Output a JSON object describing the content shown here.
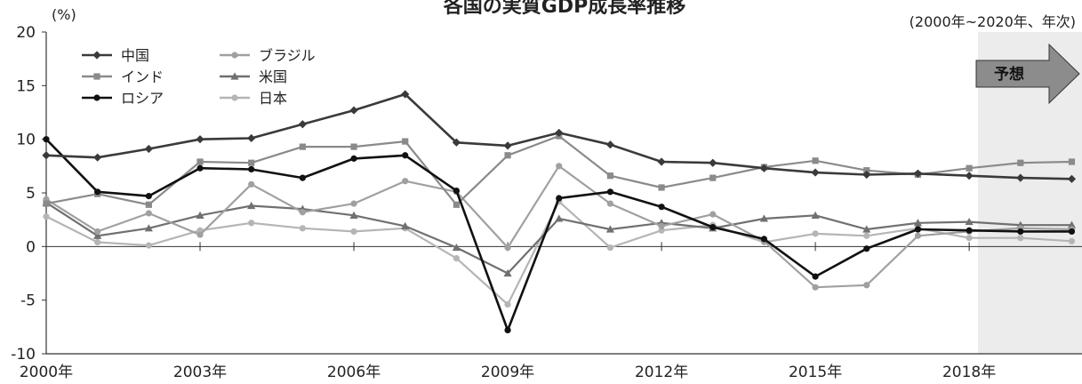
{
  "chart_data": {
    "type": "line",
    "title": "各国の実質GDP成長率推移",
    "subtitle": "(2000年~2020年、年次)",
    "ylabel": "(%)",
    "xlabel": "",
    "ylim": [
      -10,
      20
    ],
    "yticks": [
      20,
      15,
      10,
      5,
      0,
      -5,
      -10
    ],
    "x": [
      2000,
      2001,
      2002,
      2003,
      2004,
      2005,
      2006,
      2007,
      2008,
      2009,
      2010,
      2011,
      2012,
      2013,
      2014,
      2015,
      2016,
      2017,
      2018,
      2019,
      2020
    ],
    "xtick_labels": [
      "2000年",
      "2003年",
      "2006年",
      "2009年",
      "2012年",
      "2015年",
      "2018年"
    ],
    "forecast_label": "予想",
    "forecast_from": 2018,
    "legend_position": "top-left",
    "grid": false,
    "series": [
      {
        "name": "中国",
        "color": "#3a3a3a",
        "marker": "diamond",
        "values": [
          8.5,
          8.3,
          9.1,
          10.0,
          10.1,
          11.4,
          12.7,
          14.2,
          9.7,
          9.4,
          10.6,
          9.5,
          7.9,
          7.8,
          7.3,
          6.9,
          6.7,
          6.8,
          6.6,
          6.4,
          6.3
        ]
      },
      {
        "name": "インド",
        "color": "#8a8a8a",
        "marker": "square",
        "values": [
          4.0,
          4.9,
          3.9,
          7.9,
          7.8,
          9.3,
          9.3,
          9.8,
          3.9,
          8.5,
          10.3,
          6.6,
          5.5,
          6.4,
          7.4,
          8.0,
          7.1,
          6.7,
          7.3,
          7.8,
          7.9
        ]
      },
      {
        "name": "ロシア",
        "color": "#111111",
        "marker": "circle",
        "values": [
          10.0,
          5.1,
          4.7,
          7.3,
          7.2,
          6.4,
          8.2,
          8.5,
          5.2,
          -7.8,
          4.5,
          5.1,
          3.7,
          1.8,
          0.7,
          -2.8,
          -0.2,
          1.6,
          1.5,
          1.4,
          1.4
        ]
      },
      {
        "name": "ブラジル",
        "color": "#a0a0a0",
        "marker": "circle",
        "values": [
          4.4,
          1.4,
          3.1,
          1.1,
          5.8,
          3.2,
          4.0,
          6.1,
          5.1,
          -0.1,
          7.5,
          4.0,
          1.9,
          3.0,
          0.5,
          -3.8,
          -3.6,
          1.0,
          1.4,
          1.7,
          1.6
        ]
      },
      {
        "name": "米国",
        "color": "#707070",
        "marker": "triangle",
        "values": [
          4.1,
          1.0,
          1.7,
          2.9,
          3.8,
          3.5,
          2.9,
          1.9,
          -0.1,
          -2.5,
          2.6,
          1.6,
          2.2,
          1.7,
          2.6,
          2.9,
          1.6,
          2.2,
          2.3,
          2.0,
          2.0
        ]
      },
      {
        "name": "日本",
        "color": "#b5b5b5",
        "marker": "circle",
        "values": [
          2.8,
          0.4,
          0.1,
          1.5,
          2.2,
          1.7,
          1.4,
          1.7,
          -1.1,
          -5.4,
          4.2,
          -0.1,
          1.5,
          2.0,
          0.4,
          1.2,
          1.0,
          1.7,
          0.8,
          0.8,
          0.5
        ]
      }
    ]
  }
}
